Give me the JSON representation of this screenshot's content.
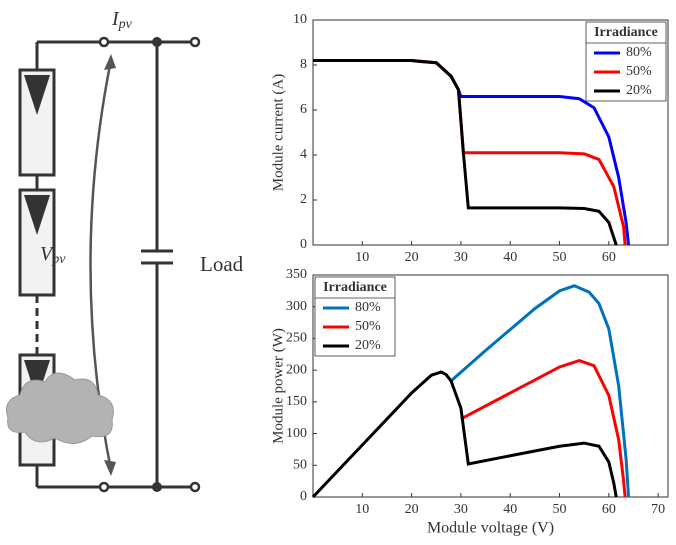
{
  "diagram": {
    "current": "I",
    "current_sub": "pv",
    "voltage": "V",
    "voltage_sub": "pv",
    "load": "Load"
  },
  "chart_data": [
    {
      "type": "line",
      "ylabel": "Module current (A)",
      "xlim": [
        0,
        72
      ],
      "ylim": [
        0,
        10
      ],
      "xticks": [
        10,
        20,
        30,
        40,
        50,
        60
      ],
      "yticks": [
        0,
        2,
        4,
        6,
        8,
        10
      ],
      "legend": "upper right",
      "legend_title": "Irradiance",
      "series": [
        {
          "name": "80%",
          "color": "#0000ff",
          "x": [
            0,
            10,
            20,
            25,
            28,
            29.5,
            30,
            40,
            50,
            54,
            57,
            60,
            62,
            63.5,
            64
          ],
          "values": [
            8.2,
            8.2,
            8.2,
            8.1,
            7.5,
            6.9,
            6.6,
            6.6,
            6.6,
            6.5,
            6.1,
            4.8,
            3,
            1,
            0
          ]
        },
        {
          "name": "50%",
          "color": "#ff0000",
          "x": [
            0,
            10,
            20,
            25,
            28,
            29.5,
            30.5,
            40,
            50,
            55,
            58,
            61,
            63,
            63.3
          ],
          "values": [
            8.2,
            8.2,
            8.2,
            8.1,
            7.5,
            6.9,
            4.1,
            4.1,
            4.1,
            4.05,
            3.8,
            2.6,
            0.8,
            0
          ]
        },
        {
          "name": "20%",
          "color": "#000000",
          "x": [
            0,
            10,
            20,
            22,
            25,
            28,
            29.5,
            30.5,
            31.5,
            40,
            50,
            55,
            58,
            60,
            61.5
          ],
          "values": [
            8.2,
            8.2,
            8.2,
            8.15,
            8.1,
            7.5,
            6.9,
            4.1,
            1.65,
            1.65,
            1.65,
            1.62,
            1.5,
            1,
            0
          ]
        }
      ]
    },
    {
      "type": "line",
      "xlabel": "Module voltage (V)",
      "ylabel": "Module power (W)",
      "xlim": [
        0,
        72
      ],
      "ylim": [
        0,
        350
      ],
      "xticks": [
        10,
        20,
        30,
        40,
        50,
        60,
        70
      ],
      "yticks": [
        0,
        50,
        100,
        150,
        200,
        250,
        300,
        350
      ],
      "legend": "upper left",
      "legend_title": "Irradiance",
      "series": [
        {
          "name": "80%",
          "color": "#0072bd",
          "x": [
            28,
            35,
            45,
            50,
            53,
            56,
            58,
            60,
            62,
            63.5,
            64
          ],
          "values": [
            183,
            231,
            297,
            325,
            333,
            323,
            305,
            265,
            175,
            60,
            0
          ]
        },
        {
          "name": "50%",
          "color": "#ff0000",
          "x": [
            30,
            40,
            50,
            54,
            57,
            60,
            62,
            63,
            63.3
          ],
          "values": [
            123,
            164,
            205,
            215,
            207,
            160,
            90,
            25,
            0
          ]
        },
        {
          "name": "20%",
          "color": "#000000",
          "x": [
            0,
            10,
            20,
            24,
            26,
            27,
            28,
            30,
            31.5,
            40,
            50,
            55,
            58,
            60,
            61,
            61.5
          ],
          "values": [
            0,
            82,
            164,
            192,
            197,
            193,
            183,
            140,
            52,
            65,
            80,
            85,
            80,
            55,
            22,
            0
          ]
        }
      ]
    }
  ]
}
